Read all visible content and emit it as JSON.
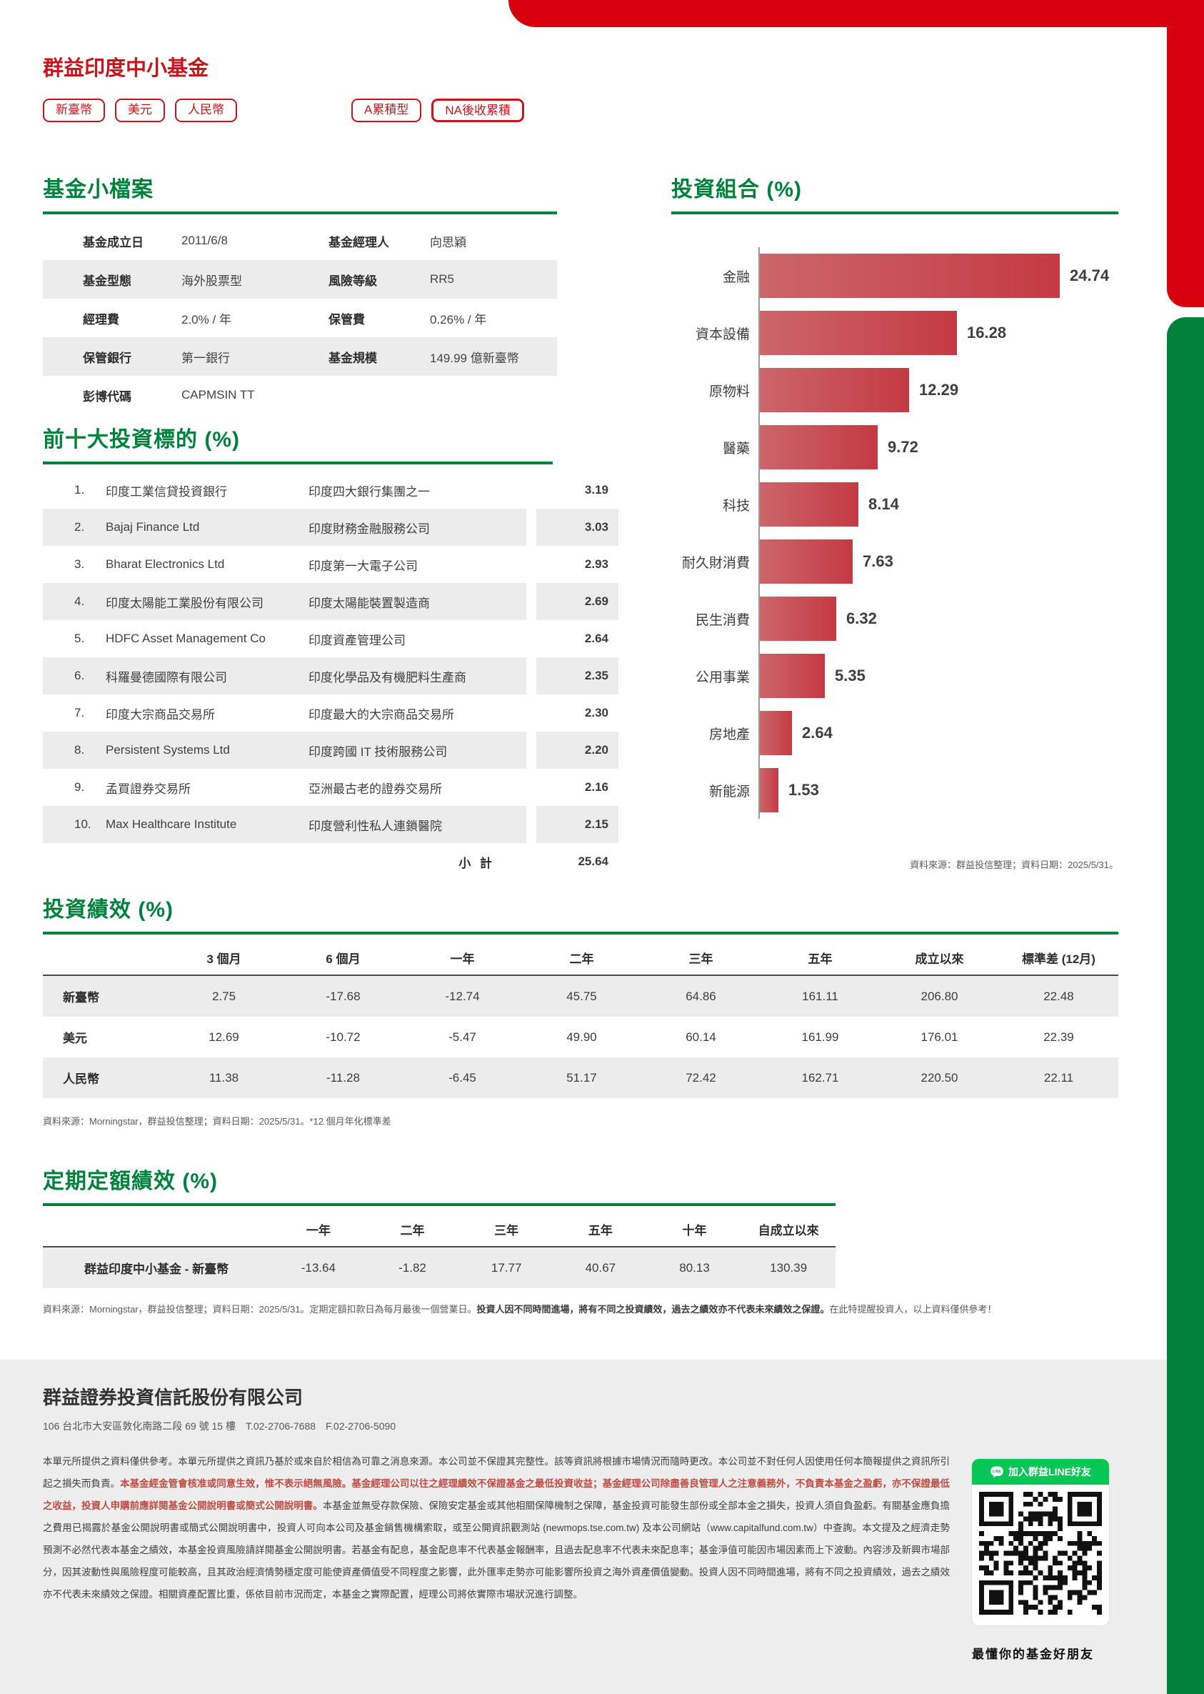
{
  "header": {
    "fund_name": "群益印度中小基金",
    "share_tags": [
      "新臺幣",
      "美元",
      "人民幣",
      "A累積型",
      "NA後收累積"
    ]
  },
  "profile": {
    "title": "基金小檔案",
    "rows": [
      [
        {
          "label": "基金成立日",
          "value": "2011/6/8"
        },
        {
          "label": "基金經理人",
          "value": "向思穎"
        }
      ],
      [
        {
          "label": "基金型態",
          "value": "海外股票型"
        },
        {
          "label": "風險等級",
          "value": "RR5"
        }
      ],
      [
        {
          "label": "經理費",
          "value": "2.0% / 年"
        },
        {
          "label": "保管費",
          "value": "0.26% / 年"
        }
      ],
      [
        {
          "label": "保管銀行",
          "value": "第一銀行"
        },
        {
          "label": "基金規模",
          "value": "149.99 億新臺幣"
        }
      ],
      [
        {
          "label": "彭博代碼",
          "value": "CAPMSIN TT"
        }
      ]
    ]
  },
  "chart_data": {
    "type": "bar",
    "orientation": "horizontal",
    "title": "投資組合 (%)",
    "categories": [
      "金融",
      "資本設備",
      "原物料",
      "醫藥",
      "科技",
      "耐久財消費",
      "民生消費",
      "公用事業",
      "房地產",
      "新能源"
    ],
    "values": [
      24.74,
      16.28,
      12.29,
      9.72,
      8.14,
      7.63,
      6.32,
      5.35,
      2.64,
      1.53
    ],
    "xlim": [
      0,
      25
    ],
    "grid": false,
    "value_labels": "end-of-bar",
    "bar_gradient": [
      "#cb666b",
      "#c53a43"
    ],
    "source_note": "資料來源：群益投信整理；資料日期：2025/5/31。"
  },
  "holdings": {
    "title": "前十大投資標的 (%)",
    "rows": [
      {
        "rank": "1.",
        "name": "印度工業信貸投資銀行",
        "desc": "印度四大銀行集團之一",
        "weight": "3.19"
      },
      {
        "rank": "2.",
        "name": "Bajaj Finance Ltd",
        "desc": "印度財務金融服務公司",
        "weight": "3.03"
      },
      {
        "rank": "3.",
        "name": "Bharat Electronics Ltd",
        "desc": "印度第一大電子公司",
        "weight": "2.93"
      },
      {
        "rank": "4.",
        "name": "印度太陽能工業股份有限公司",
        "desc": "印度太陽能裝置製造商",
        "weight": "2.69"
      },
      {
        "rank": "5.",
        "name": "HDFC Asset Management Co",
        "desc": "印度資產管理公司",
        "weight": "2.64"
      },
      {
        "rank": "6.",
        "name": "科羅曼德國際有限公司",
        "desc": "印度化學品及有機肥料生產商",
        "weight": "2.35"
      },
      {
        "rank": "7.",
        "name": "印度大宗商品交易所",
        "desc": "印度最大的大宗商品交易所",
        "weight": "2.30"
      },
      {
        "rank": "8.",
        "name": "Persistent Systems Ltd",
        "desc": "印度跨國 IT 技術服務公司",
        "weight": "2.20"
      },
      {
        "rank": "9.",
        "name": "孟買證券交易所",
        "desc": "亞洲最古老的證券交易所",
        "weight": "2.16"
      },
      {
        "rank": "10.",
        "name": "Max Healthcare Institute",
        "desc": "印度營利性私人連鎖醫院",
        "weight": "2.15"
      }
    ],
    "subtotal_label": "小 計",
    "subtotal_value": "25.64"
  },
  "performance": {
    "title": "投資績效 (%)",
    "columns": [
      "3 個月",
      "6 個月",
      "一年",
      "二年",
      "三年",
      "五年",
      "成立以來",
      "標準差 (12月)"
    ],
    "rows": [
      {
        "label": "新臺幣",
        "values": [
          "2.75",
          "-17.68",
          "-12.74",
          "45.75",
          "64.86",
          "161.11",
          "206.80",
          "22.48"
        ]
      },
      {
        "label": "美元",
        "values": [
          "12.69",
          "-10.72",
          "-5.47",
          "49.90",
          "60.14",
          "161.99",
          "176.01",
          "22.39"
        ]
      },
      {
        "label": "人民幣",
        "values": [
          "11.38",
          "-11.28",
          "-6.45",
          "51.17",
          "72.42",
          "162.71",
          "220.50",
          "22.11"
        ]
      }
    ],
    "source_note": "資料來源：Morningstar，群益投信整理；資料日期：2025/5/31。*12 個月年化標準差"
  },
  "dca": {
    "title": "定期定額績效 (%)",
    "columns": [
      "一年",
      "二年",
      "三年",
      "五年",
      "十年",
      "自成立以來"
    ],
    "rows": [
      {
        "label": "群益印度中小基金 - 新臺幣",
        "values": [
          "-13.64",
          "-1.82",
          "17.77",
          "40.67",
          "80.13",
          "130.39"
        ]
      }
    ],
    "note_segments": [
      {
        "text": "資料來源：Morningstar，群益投信整理；資料日期：2025/5/31。定期定額扣款日為每月最後一個營業日。",
        "bold": false
      },
      {
        "text": "投資人因不同時間進場，將有不同之投資績效，過去之績效亦不代表未來績效之保證。",
        "bold": true
      },
      {
        "text": "在此特提醒投資人，以上資料僅供參考！",
        "bold": false
      }
    ]
  },
  "footer": {
    "company": "群益證券投資信託股份有限公司",
    "address": "106 台北市大安區敦化南路二段 69 號 15 樓　T.02-2706-7688　F.02-2706-5090",
    "disclaimer_segments": [
      {
        "style": "normal",
        "text": "本單元所提供之資料僅供參考。本單元所提供之資訊乃基於或來自於相信為可靠之消息來源。本公司並不保證其完整性。該等資訊將根據市場情況而隨時更改。本公司並不對任何人因使用任何本簡報提供之資訊所引起之損失而負責。"
      },
      {
        "style": "red-bold",
        "text": "本基金經金管會核准或同意生效，惟不表示絕無風險。基金經理公司以往之經理績效不保證基金之最低投資收益；基金經理公司除盡善良管理人之注意義務外，不負責本基金之盈虧，亦不保證最低之收益，投資人申購前應詳閱基金公開說明書或簡式公開說明書。"
      },
      {
        "style": "normal",
        "text": "本基金並無受存款保險、保險安定基金或其他相關保障機制之保障，基金投資可能發生部份或全部本金之損失，投資人須自負盈虧。有關基金應負擔之費用已揭露於基金公開說明書或簡式公開說明書中，投資人可向本公司及基金銷售機構索取，或至公開資訊觀測站 (newmops.tse.com.tw) 及本公司網站（www.capitalfund.com.tw）中查詢。本文提及之經濟走勢預測不必然代表本基金之績效，本基金投資風險請詳閱基金公開說明書。若基金有配息，基金配息率不代表基金報酬率，且過去配息率不代表未來配息率；基金淨值可能因市場因素而上下波動。內容涉及新興市場部分，因其波動性與風險程度可能較高，且其政治經濟情勢穩定度可能使資產價值受不同程度之影響，此外匯率走勢亦可能影響所投資之海外資產價值變動。投資人因不同時間進場，將有不同之投資績效，過去之績效亦不代表未來績效之保證。相關資產配置比重，係依目前市況而定，本基金之實際配置，經理公司將依實際市場狀況進行調整。"
      }
    ],
    "line_button_label": "加入群益LINE好友",
    "qr_caption": "最懂你的基金好朋友"
  },
  "colors": {
    "brand_red": "#c5161d",
    "band_red": "#d6000f",
    "heading_green": "#00813c",
    "line_green": "#06c755",
    "stripe_gray": "#ececec",
    "footer_gray": "#ededed"
  }
}
